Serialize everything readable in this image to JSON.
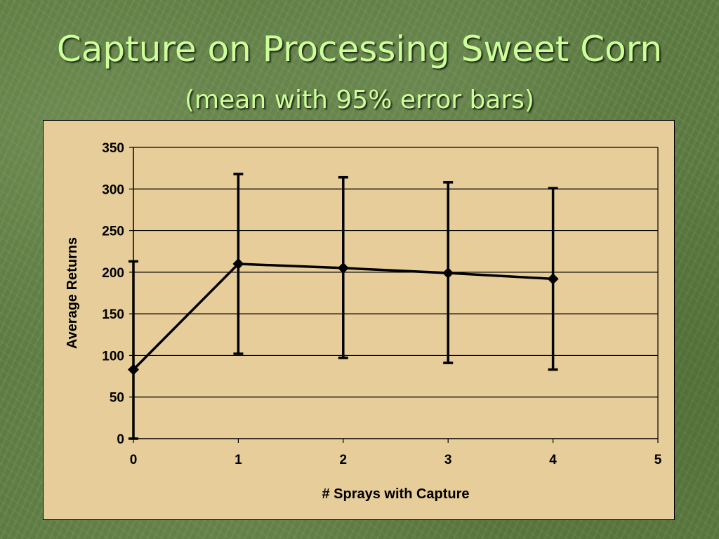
{
  "slide": {
    "title": "Capture on Processing Sweet Corn",
    "subtitle": "(mean with 95% error bars)"
  },
  "colors": {
    "background": "#5f7f43",
    "title_text": "#ccff99",
    "plot_area": "#e6cd9a",
    "series_line": "#000000"
  },
  "chart_data": {
    "type": "line",
    "title": "",
    "xlabel": "# Sprays with Capture",
    "ylabel": "Average Returns",
    "xlim": [
      0,
      5
    ],
    "ylim": [
      0,
      350
    ],
    "x_ticks": [
      0,
      1,
      2,
      3,
      4,
      5
    ],
    "y_ticks": [
      0,
      50,
      100,
      150,
      200,
      250,
      300,
      350
    ],
    "grid": "horizontal",
    "legend": "none",
    "marker": "diamond",
    "series": [
      {
        "x": [
          0,
          1,
          2,
          3,
          4
        ],
        "values": [
          83,
          210,
          205,
          199,
          192
        ],
        "error_lower": [
          0,
          102,
          97,
          91,
          83
        ],
        "error_upper": [
          213,
          318,
          314,
          308,
          301
        ]
      }
    ]
  }
}
